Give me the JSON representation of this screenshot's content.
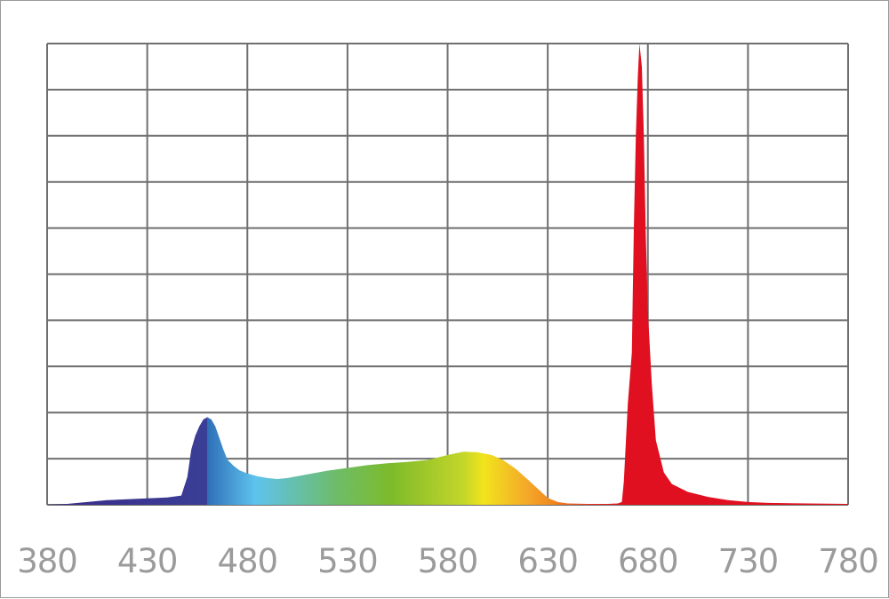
{
  "chart_data": {
    "type": "area",
    "title": "",
    "xlabel": "",
    "ylabel": "",
    "xlim": [
      380,
      780
    ],
    "ylim": [
      0,
      1
    ],
    "grid": true,
    "x_ticks": [
      380,
      430,
      480,
      530,
      580,
      630,
      680,
      730,
      780
    ],
    "x_tick_labels": [
      "380",
      "430",
      "480",
      "530",
      "580",
      "630",
      "680",
      "730",
      "780"
    ],
    "y_gridlines": 10,
    "fill": "visible-spectrum gradient",
    "colors": {
      "grid": "#6f6f6f",
      "tick_labels": "#9b9b9b",
      "violet": "#3a2a8a",
      "blue": "#2f6fb8",
      "cyan": "#5ec3ee",
      "green": "#7dbb2a",
      "yellow": "#f2e41c",
      "orange": "#f08a1e",
      "red": "#e01020"
    },
    "series": [
      {
        "points": [
          [
            380,
            0.0
          ],
          [
            390,
            0.002
          ],
          [
            400,
            0.006
          ],
          [
            410,
            0.01
          ],
          [
            420,
            0.012
          ],
          [
            430,
            0.014
          ],
          [
            440,
            0.016
          ],
          [
            447,
            0.02
          ],
          [
            450,
            0.06
          ],
          [
            452,
            0.12
          ],
          [
            454,
            0.15
          ],
          [
            456,
            0.17
          ],
          [
            458,
            0.185
          ],
          [
            460,
            0.19
          ],
          [
            462,
            0.185
          ],
          [
            464,
            0.17
          ],
          [
            466,
            0.145
          ],
          [
            468,
            0.12
          ],
          [
            470,
            0.098
          ],
          [
            473,
            0.085
          ],
          [
            476,
            0.075
          ],
          [
            480,
            0.068
          ],
          [
            485,
            0.062
          ],
          [
            490,
            0.058
          ],
          [
            495,
            0.056
          ],
          [
            500,
            0.058
          ],
          [
            510,
            0.066
          ],
          [
            520,
            0.074
          ],
          [
            530,
            0.08
          ],
          [
            540,
            0.086
          ],
          [
            550,
            0.09
          ],
          [
            560,
            0.093
          ],
          [
            570,
            0.097
          ],
          [
            580,
            0.108
          ],
          [
            588,
            0.115
          ],
          [
            595,
            0.114
          ],
          [
            602,
            0.108
          ],
          [
            608,
            0.096
          ],
          [
            614,
            0.078
          ],
          [
            620,
            0.055
          ],
          [
            625,
            0.035
          ],
          [
            630,
            0.015
          ],
          [
            635,
            0.006
          ],
          [
            640,
            0.003
          ],
          [
            650,
            0.002
          ],
          [
            660,
            0.002
          ],
          [
            665,
            0.003
          ],
          [
            667,
            0.006
          ],
          [
            668,
            0.05
          ],
          [
            670,
            0.22
          ],
          [
            672,
            0.33
          ],
          [
            673,
            0.6
          ],
          [
            674,
            0.8
          ],
          [
            675,
            0.93
          ],
          [
            675.8,
            1.0
          ],
          [
            677,
            0.95
          ],
          [
            678,
            0.8
          ],
          [
            679,
            0.58
          ],
          [
            680,
            0.42
          ],
          [
            682,
            0.26
          ],
          [
            684,
            0.14
          ],
          [
            688,
            0.07
          ],
          [
            692,
            0.045
          ],
          [
            700,
            0.028
          ],
          [
            710,
            0.017
          ],
          [
            720,
            0.01
          ],
          [
            730,
            0.006
          ],
          [
            740,
            0.004
          ],
          [
            760,
            0.003
          ],
          [
            780,
            0.002
          ]
        ]
      }
    ]
  }
}
